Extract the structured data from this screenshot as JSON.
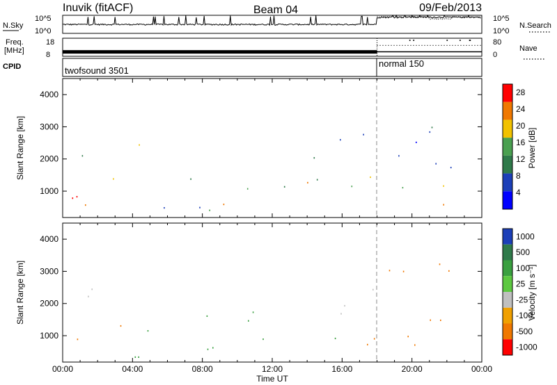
{
  "header": {
    "title_left": "Inuvik (fitACF)",
    "title_center": "Beam 04",
    "date": "09/Feb/2013"
  },
  "chart_data": [
    {
      "type": "line",
      "panel": "noise",
      "series": [
        {
          "name": "N.Sky",
          "style": "solid"
        },
        {
          "name": "N.Search",
          "style": "dotted"
        }
      ],
      "ylabel_left": "N.Sky",
      "ylabel_right": "N.Search",
      "ytick_labels_left": [
        "10^5",
        "10^0"
      ],
      "ytick_labels_right": [
        "10^5",
        "10^0"
      ],
      "yscale": "log",
      "ylim": [
        1,
        100000
      ],
      "x": [
        "00:00",
        "18:00",
        "24:00"
      ],
      "left_segment": {
        "baseline": 300,
        "spikes": true
      },
      "right_segment": {
        "baseline": 30000,
        "search_dips": true
      }
    },
    {
      "type": "line",
      "panel": "frequency",
      "series": [
        {
          "name": "Freq.",
          "style": "solid"
        },
        {
          "name": "Nave",
          "style": "dotted"
        }
      ],
      "ylabel_left": "Freq. [MHz]",
      "ylabel_right": "Nave",
      "ytick_labels_left": [
        "18",
        "8"
      ],
      "ytick_labels_right": [
        "80",
        "0"
      ],
      "ylim_left": [
        8,
        18
      ],
      "ylim_right": [
        0,
        80
      ],
      "freq_level_mhz": 10.5,
      "nave_level": 48
    },
    {
      "type": "table",
      "panel": "cpid",
      "label": "CPID",
      "segments": [
        {
          "start": "00:00",
          "end": "18:00",
          "text": "twofsound 3501"
        },
        {
          "start": "18:00",
          "end": "24:00",
          "text": "normal 150"
        }
      ]
    },
    {
      "type": "heatmap",
      "panel": "power",
      "xlabel": "",
      "ylabel": "Slant Range [km]",
      "ylim": [
        180,
        4500
      ],
      "yticks": [
        1000,
        2000,
        3000,
        4000
      ],
      "xlim": [
        0,
        24
      ],
      "colorbar_label": "Power [dB]",
      "colorbar_ticks": [
        4,
        8,
        12,
        16,
        20,
        24,
        28
      ],
      "colorbar_range": [
        0,
        30
      ],
      "colorbar_colors": [
        "#0000ff",
        "#1c3fb8",
        "#2f7a4a",
        "#4aa050",
        "#f2c200",
        "#f07800",
        "#ff0000"
      ],
      "scatter_regions": [
        {
          "t0": 0.0,
          "t1": 5.5,
          "r0": 500,
          "r1": 1600,
          "level": 24
        },
        {
          "t0": 1.0,
          "t1": 4.5,
          "r0": 1700,
          "r1": 2500,
          "level": 14
        },
        {
          "t0": 5.5,
          "t1": 9.8,
          "r0": 400,
          "r1": 1700,
          "level": 14
        },
        {
          "t0": 5.8,
          "t1": 9.5,
          "r0": 250,
          "r1": 700,
          "level": 22
        },
        {
          "t0": 10.5,
          "t1": 18.0,
          "r0": 900,
          "r1": 1700,
          "level": 16
        },
        {
          "t0": 11.0,
          "t1": 17.0,
          "r0": 1100,
          "r1": 1500,
          "level": 20
        },
        {
          "t0": 14.0,
          "t1": 17.5,
          "r0": 1900,
          "r1": 3000,
          "level": 10
        },
        {
          "t0": 18.0,
          "t1": 24.0,
          "r0": 600,
          "r1": 1200,
          "level": 24
        },
        {
          "t0": 18.5,
          "t1": 22.5,
          "r0": 1200,
          "r1": 3400,
          "level": 6
        },
        {
          "t0": 21.5,
          "t1": 24.0,
          "r0": 1300,
          "r1": 1500,
          "level": 22
        }
      ]
    },
    {
      "type": "heatmap",
      "panel": "velocity",
      "xlabel": "Time UT",
      "ylabel": "Slant Range [km]",
      "ylim": [
        180,
        4500
      ],
      "yticks": [
        1000,
        2000,
        3000,
        4000
      ],
      "xlim": [
        0,
        24
      ],
      "xtick_labels": [
        "00:00",
        "04:00",
        "08:00",
        "12:00",
        "16:00",
        "20:00",
        "00:00"
      ],
      "colorbar_label": "Velocity [m s^-1]",
      "colorbar_ticks": [
        "1000",
        "500",
        "100",
        "25",
        "-25",
        "-100",
        "-500",
        "-1000"
      ],
      "colorbar_colors": [
        "#1c3fb8",
        "#2f7a4a",
        "#3aa040",
        "#5cc840",
        "#c0c0c0",
        "#f0a000",
        "#f07800",
        "#ff0000"
      ],
      "scatter_regions": [
        {
          "t0": 0.0,
          "t1": 3.8,
          "r0": 500,
          "r1": 1400,
          "level": -150
        },
        {
          "t0": 0.8,
          "t1": 4.2,
          "r0": 1800,
          "r1": 2600,
          "level": 0
        },
        {
          "t0": 4.0,
          "t1": 9.5,
          "r0": 300,
          "r1": 1900,
          "level": 150
        },
        {
          "t0": 10.5,
          "t1": 17.0,
          "r0": 900,
          "r1": 1800,
          "level": 200
        },
        {
          "t0": 14.0,
          "t1": 18.0,
          "r0": 1500,
          "r1": 2600,
          "level": 0
        },
        {
          "t0": 16.5,
          "t1": 24.0,
          "r0": 600,
          "r1": 1300,
          "level": -150
        },
        {
          "t0": 18.5,
          "t1": 22.5,
          "r0": 1200,
          "r1": 3400,
          "level": -120
        },
        {
          "t0": 22.0,
          "t1": 24.0,
          "r0": 1300,
          "r1": 1500,
          "level": 30
        }
      ]
    }
  ]
}
